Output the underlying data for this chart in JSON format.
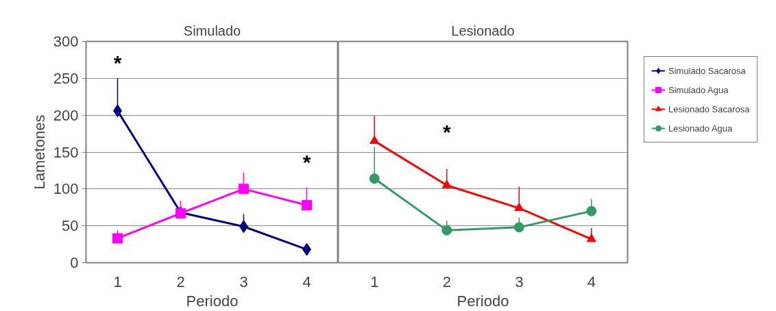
{
  "chart_data": [
    {
      "type": "line",
      "title": "Simulado",
      "xlabel": "Periodo",
      "ylabel": "Lametones",
      "categories": [
        "1",
        "2",
        "3",
        "4"
      ],
      "ylim": [
        0,
        300
      ],
      "yticks": [
        0,
        50,
        100,
        150,
        200,
        250,
        300
      ],
      "grid": "y",
      "legend": "right",
      "line_style": "solid",
      "series": [
        {
          "name": "Simulado Sacarosa",
          "color": "#000080",
          "marker": "diamond",
          "values": [
            206,
            68,
            49,
            18
          ],
          "errors": [
            [
              206,
              250
            ],
            null,
            [
              49,
              66
            ],
            null
          ]
        },
        {
          "name": "Simulado Agua",
          "color": "#ff00ff",
          "marker": "square",
          "values": [
            33,
            67,
            100,
            78
          ],
          "errors": [
            [
              33,
              44
            ],
            [
              67,
              84
            ],
            [
              100,
              122
            ],
            [
              78,
              102
            ]
          ]
        }
      ],
      "annotations": [
        "*",
        "*"
      ]
    },
    {
      "type": "line",
      "title": "Lesionado",
      "xlabel": "Periodo",
      "categories": [
        "1",
        "2",
        "3",
        "4"
      ],
      "ylim": [
        0,
        300
      ],
      "yticks": [
        0,
        50,
        100,
        150,
        200,
        250,
        300
      ],
      "grid": "y",
      "legend": "right",
      "tick_labels": "x",
      "line_style": "solid",
      "series": [
        {
          "name": "Lesionado Sacarosa",
          "color": "#ff0000",
          "marker": "triangle",
          "values": [
            165,
            105,
            74,
            32
          ],
          "errors": [
            [
              165,
              199
            ],
            [
              105,
              127
            ],
            [
              74,
              103
            ],
            [
              32,
              47
            ]
          ]
        },
        {
          "name": "Lesionado Agua",
          "color": "#339966",
          "marker": "circle",
          "values": [
            114,
            44,
            48,
            70
          ],
          "errors": [
            [
              114,
              157
            ],
            [
              44,
              57
            ],
            [
              48,
              61
            ],
            [
              70,
              86
            ]
          ]
        }
      ],
      "annotations": [
        "*"
      ]
    }
  ]
}
